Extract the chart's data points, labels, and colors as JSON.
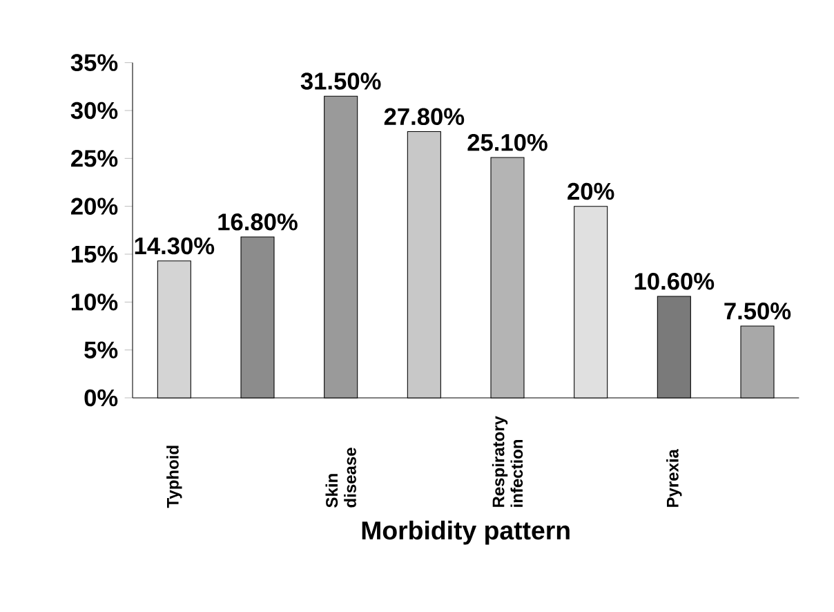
{
  "chart_data": {
    "type": "bar",
    "xlabel": "Morbidity pattern",
    "categories": [
      "Typhoid",
      null,
      "Skin disease",
      null,
      "Respiratory infection",
      null,
      "Pyrexia",
      null
    ],
    "values": [
      14.3,
      16.8,
      31.5,
      27.8,
      25.1,
      20,
      10.6,
      7.5
    ],
    "value_labels": [
      "14.30%",
      "16.80%",
      "31.50%",
      "27.80%",
      "25.10%",
      "20%",
      "10.60%",
      "7.50%"
    ],
    "colors": [
      "#d4d4d4",
      "#8c8c8c",
      "#9a9a9a",
      "#c8c8c8",
      "#b4b4b4",
      "#e0e0e0",
      "#7a7a7a",
      "#a8a8a8"
    ],
    "ylim": [
      0,
      35
    ],
    "yticks": [
      {
        "value": 0,
        "label": "0%"
      },
      {
        "value": 5,
        "label": "5%"
      },
      {
        "value": 10,
        "label": "10%"
      },
      {
        "value": 15,
        "label": "15%"
      },
      {
        "value": 20,
        "label": "20%"
      },
      {
        "value": 25,
        "label": "25%"
      },
      {
        "value": 30,
        "label": "30%"
      },
      {
        "value": 35,
        "label": "35%"
      }
    ],
    "grid": false
  }
}
